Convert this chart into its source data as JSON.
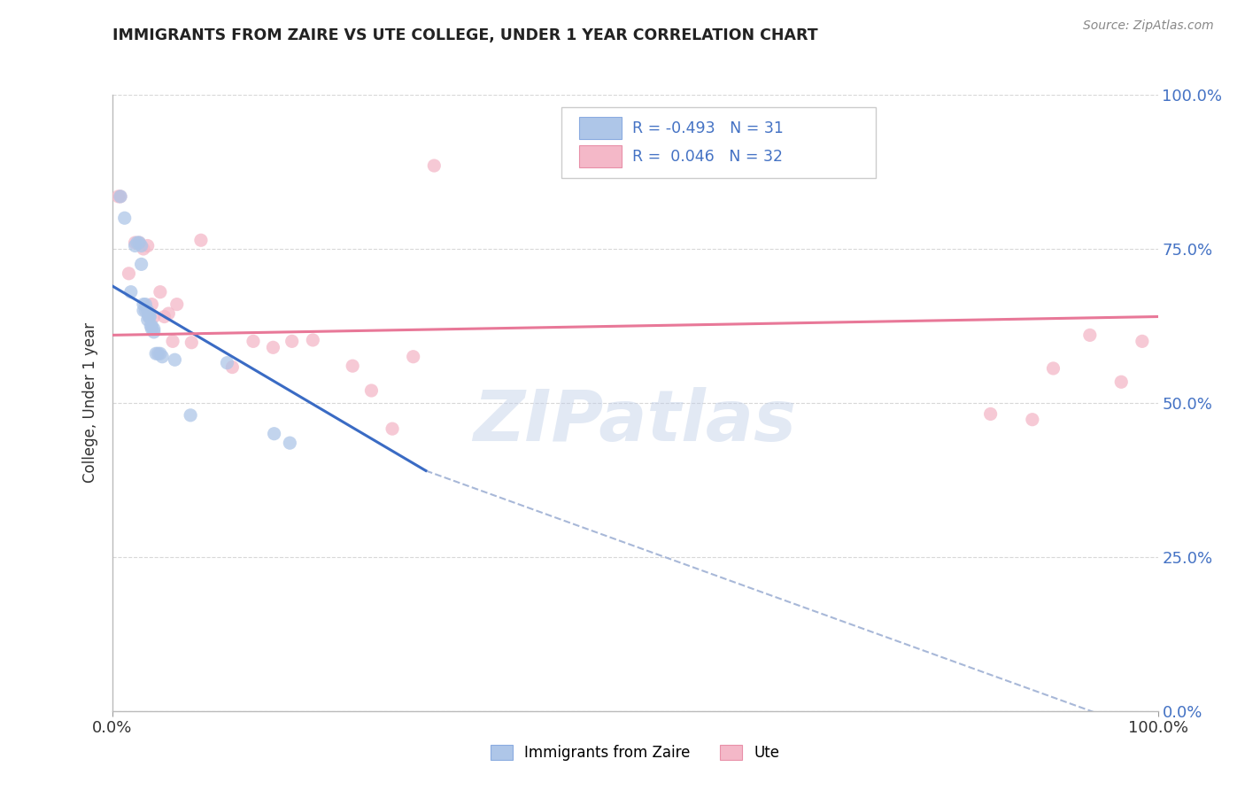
{
  "title": "IMMIGRANTS FROM ZAIRE VS UTE COLLEGE, UNDER 1 YEAR CORRELATION CHART",
  "source": "Source: ZipAtlas.com",
  "ylabel": "College, Under 1 year",
  "legend_label1": "Immigrants from Zaire",
  "legend_label2": "Ute",
  "R1": -0.493,
  "N1": 31,
  "R2": 0.046,
  "N2": 32,
  "color_blue": "#aec6e8",
  "color_pink": "#f4b8c8",
  "line_blue": "#3a6bc4",
  "line_pink": "#e87898",
  "line_dashed_color": "#a8b8d8",
  "blue_scatter_x": [
    0.008,
    0.012,
    0.018,
    0.022,
    0.024,
    0.026,
    0.028,
    0.028,
    0.03,
    0.03,
    0.032,
    0.032,
    0.034,
    0.034,
    0.035,
    0.036,
    0.036,
    0.037,
    0.038,
    0.038,
    0.04,
    0.04,
    0.042,
    0.044,
    0.046,
    0.048,
    0.06,
    0.075,
    0.11,
    0.155,
    0.17
  ],
  "blue_scatter_y": [
    0.835,
    0.8,
    0.68,
    0.755,
    0.76,
    0.76,
    0.755,
    0.725,
    0.66,
    0.65,
    0.66,
    0.65,
    0.65,
    0.635,
    0.64,
    0.64,
    0.64,
    0.625,
    0.625,
    0.62,
    0.62,
    0.615,
    0.58,
    0.58,
    0.58,
    0.575,
    0.57,
    0.48,
    0.565,
    0.45,
    0.435
  ],
  "pink_scatter_x": [
    0.006,
    0.008,
    0.016,
    0.022,
    0.026,
    0.03,
    0.034,
    0.038,
    0.04,
    0.046,
    0.05,
    0.054,
    0.058,
    0.062,
    0.076,
    0.085,
    0.115,
    0.135,
    0.154,
    0.172,
    0.192,
    0.23,
    0.248,
    0.268,
    0.288,
    0.308,
    0.84,
    0.88,
    0.9,
    0.935,
    0.965,
    0.985
  ],
  "pink_scatter_y": [
    0.835,
    0.835,
    0.71,
    0.76,
    0.76,
    0.75,
    0.755,
    0.66,
    0.64,
    0.68,
    0.64,
    0.645,
    0.6,
    0.66,
    0.598,
    0.764,
    0.558,
    0.6,
    0.59,
    0.6,
    0.602,
    0.56,
    0.52,
    0.458,
    0.575,
    0.885,
    0.482,
    0.473,
    0.556,
    0.61,
    0.534,
    0.6
  ],
  "blue_line_x": [
    0.0,
    0.3
  ],
  "blue_line_y": [
    0.69,
    0.39
  ],
  "pink_line_x": [
    0.0,
    1.0
  ],
  "pink_line_y": [
    0.61,
    0.64
  ],
  "dashed_line_x": [
    0.3,
    1.05
  ],
  "dashed_line_y": [
    0.39,
    -0.07
  ],
  "watermark": "ZIPatlas",
  "background_color": "#ffffff",
  "grid_color": "#d8d8d8",
  "xlim": [
    0.0,
    1.0
  ],
  "ylim": [
    0.0,
    1.0
  ],
  "ytick_positions": [
    0.0,
    0.25,
    0.5,
    0.75,
    1.0
  ],
  "ytick_labels_right": [
    "0.0%",
    "25.0%",
    "50.0%",
    "75.0%",
    "100.0%"
  ],
  "xtick_positions": [
    0.0,
    1.0
  ],
  "xtick_labels": [
    "0.0%",
    "100.0%"
  ]
}
